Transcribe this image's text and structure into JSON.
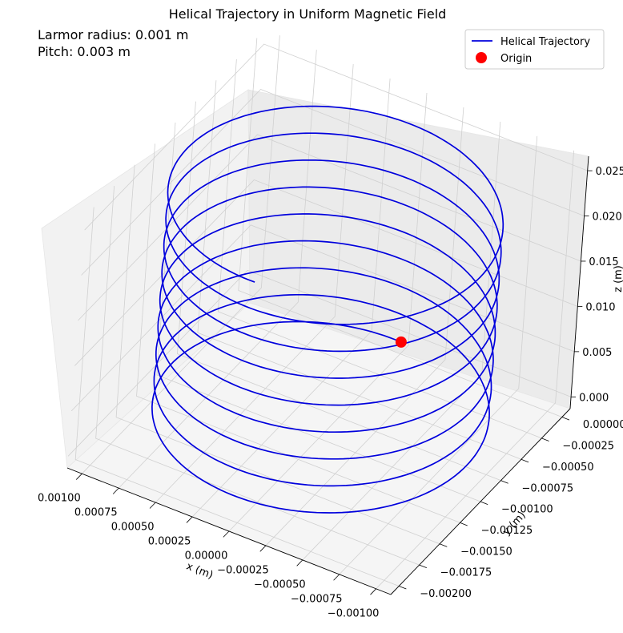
{
  "chart_data": {
    "type": "line",
    "projection": "3d",
    "title": "Helical Trajectory in Uniform Magnetic Field",
    "annotations": [
      "Larmor radius: 0.001 m",
      "Pitch: 0.003 m"
    ],
    "xlabel": "x (m)",
    "ylabel": "y (m)",
    "zlabel": "z (m)",
    "xlim": [
      -0.0011,
      0.0011
    ],
    "ylim": [
      -0.0021,
      0.0001
    ],
    "zlim": [
      -0.0013,
      0.0266
    ],
    "x_ticks": [
      "−0.00100",
      "−0.00075",
      "−0.00050",
      "−0.00025",
      "0.00000",
      "0.00025",
      "0.00050",
      "0.00075",
      "0.00100"
    ],
    "y_ticks": [
      "0.00000",
      "−0.00025",
      "−0.00050",
      "−0.00075",
      "−0.00100",
      "−0.00125",
      "−0.00150",
      "−0.00175",
      "−0.00200"
    ],
    "z_ticks": [
      "0.000",
      "0.005",
      "0.010",
      "0.015",
      "0.020",
      "0.025"
    ],
    "grid": true,
    "legend_position": "top-right",
    "series": [
      {
        "name": "Helical Trajectory",
        "kind": "line",
        "color": "#0000dd",
        "center_x": 0.0,
        "center_y": -0.001,
        "radius": 0.001,
        "turns": 8.5,
        "z_start": 0.0,
        "z_end": 0.0253
      },
      {
        "name": "Origin",
        "kind": "point",
        "color": "#ff0000",
        "x": 0.0,
        "y": 0.0,
        "z": 0.0
      }
    ]
  }
}
